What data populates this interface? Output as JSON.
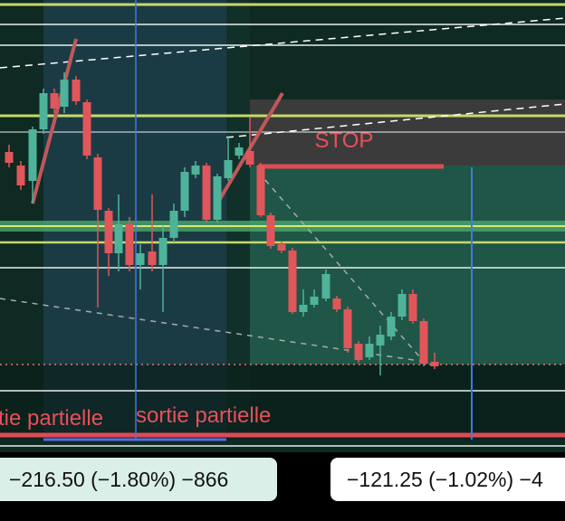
{
  "labels": {
    "stop": "STOP",
    "partial_exit_left": "tie partielle",
    "partial_exit_right": "sortie partielle"
  },
  "badges": {
    "left": "−216.50 (−1.80%) −866",
    "right": "−121.25 (−1.02%) −4"
  }
}
